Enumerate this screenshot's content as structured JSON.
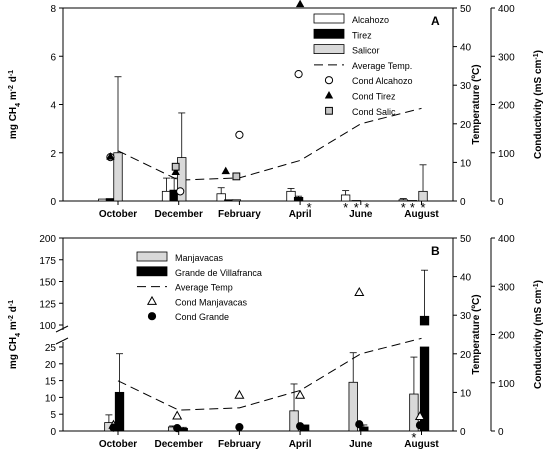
{
  "figure": {
    "chart_data": [
      {
        "panel": "A",
        "type": "bar",
        "categories": [
          "October",
          "December",
          "February",
          "April",
          "June",
          "August"
        ],
        "axes": {
          "left": {
            "label_parts": [
              "mg CH",
              "4",
              " m",
              "-2",
              " d",
              "-1"
            ],
            "ylim": [
              0,
              8
            ],
            "ticks": [
              "0",
              "2",
              "4",
              "6",
              "8"
            ]
          },
          "right1": {
            "label": "Temperature (ºC)",
            "ylim": [
              0,
              50
            ],
            "ticks": [
              "0",
              "10",
              "20",
              "30",
              "40",
              "50"
            ]
          },
          "right2": {
            "label_parts": [
              "Conductivity (mS cm",
              "-1",
              ")"
            ],
            "ylim": [
              0,
              400
            ],
            "ticks": [
              "0",
              "100",
              "200",
              "300",
              "400"
            ]
          }
        },
        "bar_series": [
          {
            "name": "Alcahozo",
            "color": "#ffffff",
            "points": [
              {
                "month": 9.5,
                "value": 0.08,
                "err": 0
              },
              {
                "month": 11.6,
                "value": 0.4,
                "err": 0.55
              },
              {
                "month": 1.4,
                "value": 0.3,
                "err": 0.25
              },
              {
                "month": 3.7,
                "value": 0.4,
                "err": 0.12
              },
              {
                "month": 5.5,
                "value": 0.25,
                "err": 0.18
              },
              {
                "month": 7.4,
                "value": 0.05,
                "err": 0.05
              }
            ]
          },
          {
            "name": "Tirez",
            "color": "#000000",
            "points": [
              {
                "month": 9.75,
                "value": 0.1,
                "err": 0
              },
              {
                "month": 11.85,
                "value": 0.45,
                "err": 0.5
              },
              {
                "month": 1.65,
                "value": 0.05,
                "err": 0
              },
              {
                "month": 3.95,
                "value": 0.15,
                "err": 0.05
              },
              {
                "month": 5.85,
                "value": 0.02,
                "err": 0
              },
              {
                "month": 7.7,
                "value": 0.02,
                "err": 0
              }
            ]
          },
          {
            "name": "Salicor",
            "color": "#d9d9d9",
            "points": [
              {
                "month": 10.0,
                "value": 2.0,
                "err": 3.15
              },
              {
                "month": 12.1,
                "value": 1.8,
                "err": 1.85
              },
              {
                "month": 1.9,
                "value": 0.05,
                "err": 0
              },
              {
                "month": 8.05,
                "value": 0.4,
                "err": 1.1
              }
            ]
          }
        ],
        "asterisks_at_month": [
          4.3,
          5.5,
          5.85,
          6.2,
          7.4,
          7.7,
          8.05
        ],
        "avg_temp": {
          "name": "Average Temp.",
          "points": [
            {
              "month": 10,
              "value": 13
            },
            {
              "month": 12,
              "value": 5.4
            },
            {
              "month": 2,
              "value": 6
            },
            {
              "month": 4,
              "value": 10.5
            },
            {
              "month": 6,
              "value": 20
            },
            {
              "month": 8,
              "value": 24
            }
          ]
        },
        "conductivity": [
          {
            "name": "Cond Alcahozo",
            "marker": "circle-open",
            "points": [
              {
                "month": 9.75,
                "value": 91
              },
              {
                "month": 12.05,
                "value": 20
              },
              {
                "month": 2.0,
                "value": 137
              },
              {
                "month": 3.95,
                "value": 263
              }
            ]
          },
          {
            "name": "Cond Tirez",
            "marker": "triangle-filled",
            "points": [
              {
                "month": 9.75,
                "value": 92
              },
              {
                "month": 11.9,
                "value": 60
              },
              {
                "month": 1.55,
                "value": 62
              },
              {
                "month": 4.0,
                "value": 408
              }
            ]
          },
          {
            "name": "Cond Salic",
            "marker": "square-grey",
            "points": [
              {
                "month": 11.9,
                "value": 71
              },
              {
                "month": 1.9,
                "value": 51
              }
            ]
          }
        ]
      },
      {
        "panel": "B",
        "type": "bar",
        "categories": [
          "October",
          "December",
          "February",
          "April",
          "June",
          "August"
        ],
        "axes": {
          "left": {
            "label_parts": [
              "mg CH",
              "4",
              " m",
              "-2",
              " d",
              "-1"
            ],
            "broken": true,
            "lower_ylim": [
              0,
              25
            ],
            "lower_ticks": [
              "0",
              "5",
              "10",
              "15",
              "20",
              "25"
            ],
            "upper_ylim": [
              100,
              200
            ],
            "upper_ticks": [
              "100",
              "125",
              "150",
              "175",
              "200"
            ]
          },
          "right1": {
            "label": "Temperature (ºC)",
            "ylim": [
              0,
              50
            ],
            "ticks": [
              "0",
              "10",
              "20",
              "30",
              "40",
              "50"
            ]
          },
          "right2": {
            "label_parts": [
              "Conductivity (mS cm",
              "-1",
              ")"
            ],
            "ylim": [
              0,
              400
            ],
            "ticks": [
              "0",
              "100",
              "200",
              "300",
              "400"
            ]
          }
        },
        "bar_series": [
          {
            "name": "Manjavacas",
            "color": "#d9d9d9",
            "points": [
              {
                "month": 9.7,
                "value": 2.5,
                "err": 2.3
              },
              {
                "month": 11.8,
                "value": 1.2,
                "err": 0.3
              },
              {
                "month": 3.8,
                "value": 6,
                "err": 8
              },
              {
                "month": 5.75,
                "value": 14.5,
                "err": 8.8
              },
              {
                "month": 7.75,
                "value": 11,
                "err": 11
              }
            ]
          },
          {
            "name": "Grande de Villafranca",
            "color": "#000000",
            "points": [
              {
                "month": 10.05,
                "value": 11.5,
                "err": 11.5
              },
              {
                "month": 12.15,
                "value": 0.8,
                "err": 0.3
              },
              {
                "month": 4.15,
                "value": 1.8,
                "err": 0
              },
              {
                "month": 6.1,
                "value": 1.2,
                "err": 0.6
              },
              {
                "month": 8.1,
                "value": 110,
                "err": 53
              }
            ]
          }
        ],
        "asterisks_at_month": [
          7.75
        ],
        "avg_temp": {
          "name": "Average Temp",
          "points": [
            {
              "month": 10,
              "value": 13
            },
            {
              "month": 12,
              "value": 5.4
            },
            {
              "month": 2,
              "value": 6
            },
            {
              "month": 4,
              "value": 10.5
            },
            {
              "month": 6,
              "value": 20
            },
            {
              "month": 8,
              "value": 24
            }
          ]
        },
        "conductivity": [
          {
            "name": "Cond Manjavacas",
            "marker": "triangle-open",
            "points": [
              {
                "month": 9.85,
                "value": 12
              },
              {
                "month": 11.95,
                "value": 31
              },
              {
                "month": 2.0,
                "value": 74
              },
              {
                "month": 4.0,
                "value": 74
              },
              {
                "month": 5.95,
                "value": 287
              },
              {
                "month": 7.95,
                "value": 30
              }
            ]
          },
          {
            "name": "Cond Grande",
            "marker": "circle-filled",
            "points": [
              {
                "month": 9.85,
                "value": 7
              },
              {
                "month": 11.95,
                "value": 6
              },
              {
                "month": 2.0,
                "value": 8
              },
              {
                "month": 4.0,
                "value": 10
              },
              {
                "month": 5.95,
                "value": 14
              },
              {
                "month": 7.95,
                "value": 12
              }
            ]
          }
        ]
      }
    ]
  }
}
